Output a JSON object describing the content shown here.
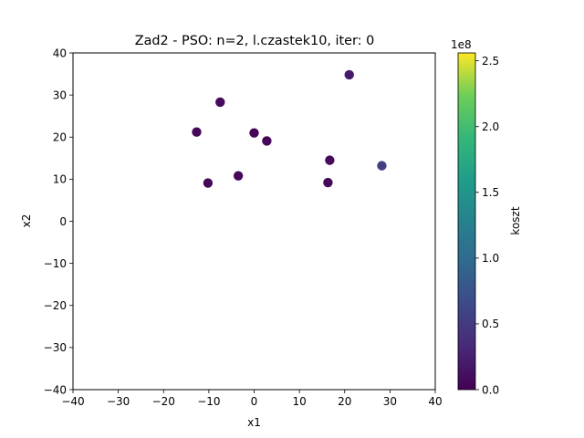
{
  "chart_data": {
    "type": "scatter",
    "title": "Zad2 - PSO: n=2, l.czastek10, iter: 0",
    "xlabel": "x1",
    "ylabel": "x2",
    "xlim": [
      -40,
      40
    ],
    "ylim": [
      -40,
      40
    ],
    "xticks": [
      "−40",
      "−30",
      "−20",
      "−10",
      "0",
      "10",
      "20",
      "30",
      "40"
    ],
    "yticks": [
      "−40",
      "−30",
      "−20",
      "−10",
      "0",
      "10",
      "20",
      "30",
      "40"
    ],
    "grid": false,
    "points": [
      {
        "x": -7.5,
        "y": 28.3,
        "c": 0.08
      },
      {
        "x": 21.0,
        "y": 34.8,
        "c": 0.2
      },
      {
        "x": -12.7,
        "y": 21.2,
        "c": 0.06
      },
      {
        "x": 0.0,
        "y": 21.0,
        "c": 0.04
      },
      {
        "x": 2.8,
        "y": 19.1,
        "c": 0.05
      },
      {
        "x": 16.7,
        "y": 14.5,
        "c": 0.07
      },
      {
        "x": 28.2,
        "y": 13.2,
        "c": 0.55
      },
      {
        "x": -3.5,
        "y": 10.8,
        "c": 0.05
      },
      {
        "x": -10.2,
        "y": 9.1,
        "c": 0.05
      },
      {
        "x": 16.3,
        "y": 9.2,
        "c": 0.06
      }
    ],
    "colorbar": {
      "label": "koszt",
      "multiplier": "1e8",
      "range": [
        0,
        2.56
      ],
      "ticks": [
        "0.0",
        "0.5",
        "1.0",
        "1.5",
        "2.0",
        "2.5"
      ],
      "colormap": "viridis"
    }
  }
}
